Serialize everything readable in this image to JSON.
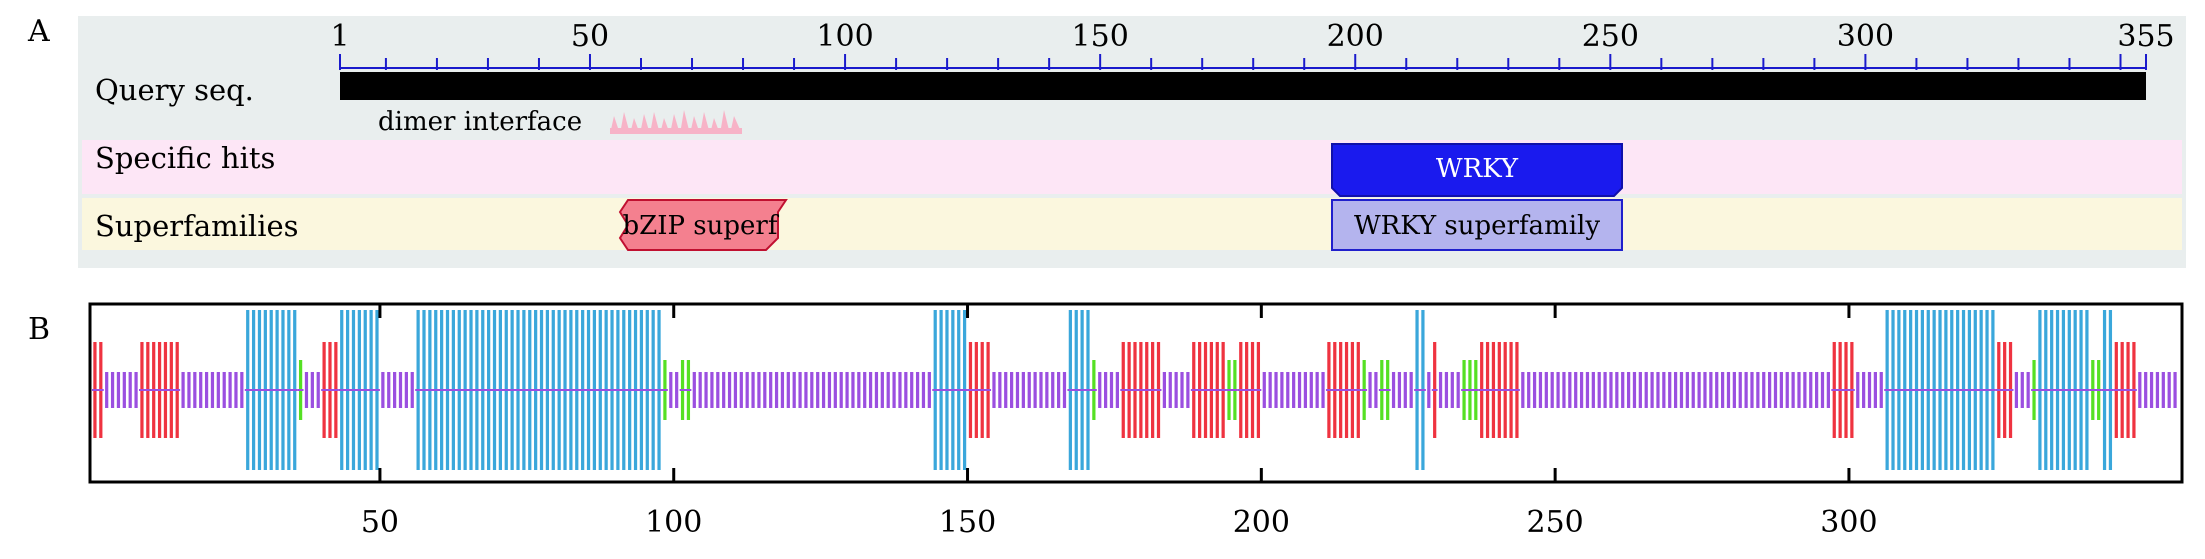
{
  "panel_labels": {
    "a": "A",
    "b": "B"
  },
  "panel_a": {
    "ruler_ticks": [
      "1",
      "50",
      "100",
      "150",
      "200",
      "250",
      "300",
      "355"
    ],
    "row_labels": {
      "query": "Query seq.",
      "specific": "Specific hits",
      "superfamilies": "Superfamilies"
    },
    "annotation": "dimer interface",
    "specific_hit": "WRKY",
    "superfamily_hits": [
      "bZIP superf",
      "WRKY superfamily"
    ],
    "colors": {
      "query_bar": "#000000",
      "ruler": "#1a1acc",
      "specific_bg": "#fde6f6",
      "superfam_bg": "#fbf7de",
      "panel_bg": "#e9eeee",
      "wrky_fill": "#1a1aee",
      "wrky_super_fill": "#b4b4ee",
      "bzip_fill": "#f4808f",
      "dimer_fill": "#f7b3c7"
    }
  },
  "panel_b": {
    "axis_ticks": [
      "50",
      "100",
      "150",
      "200",
      "250",
      "300"
    ],
    "colors": {
      "helix": "#ef3340",
      "strand": "#3aa7db",
      "turn": "#55e023",
      "coil": "#9b4fe0"
    }
  }
}
